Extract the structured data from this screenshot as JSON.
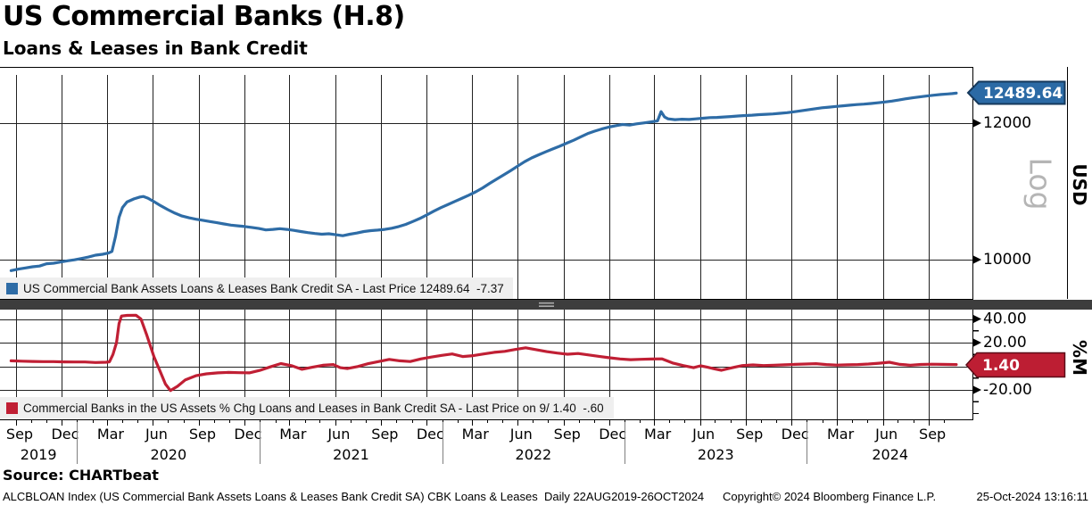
{
  "header": {
    "title": "US Commercial Banks (H.8)",
    "subtitle": "Loans & Leases in Bank Credit"
  },
  "colors": {
    "blue": "#2e6ca6",
    "blue_tag_fill": "#2b6aa5",
    "blue_tag_border": "#16395c",
    "red": "#c01f34",
    "red_tag_fill": "#bd1e33",
    "red_tag_border": "#5c0c18",
    "grid": "#222222",
    "legend_bg": "#efefef",
    "separator": "#3d3d3d",
    "log_watermark": "#b5b5b5"
  },
  "top_panel": {
    "legend": "US Commercial Bank Assets Loans & Leases Bank Credit SA - Last Price 12489.64  -7.37",
    "last_price_label": "12489.64",
    "scale_label": "Log",
    "axis_label_unit": "USD",
    "yticks": [
      {
        "label": "12000",
        "value": 12000
      },
      {
        "label": "10000",
        "value": 10000
      }
    ]
  },
  "bottom_panel": {
    "legend": "Commercial Banks in the US Assets % Chg Loans and Leases in Bank Credit SA - Last Price on 9/ 1.40  -.60",
    "last_price_label": "1.40",
    "axis_label_unit": "%M",
    "yticks": [
      {
        "label": "40.00",
        "value": 40
      },
      {
        "label": "20.00",
        "value": 20
      },
      {
        "label": "-20.00",
        "value": -20
      }
    ]
  },
  "x_axis": {
    "month_labels": [
      "Sep",
      "Dec",
      "Mar",
      "Jun",
      "Sep",
      "Dec",
      "Mar",
      "Jun",
      "Sep",
      "Dec",
      "Mar",
      "Jun",
      "Sep",
      "Dec",
      "Mar",
      "Jun",
      "Sep",
      "Dec",
      "Mar",
      "Jun",
      "Sep"
    ],
    "year_labels": [
      "2019",
      "2020",
      "2021",
      "2022",
      "2023",
      "2024"
    ],
    "range_start": "2019-08-22",
    "range_end": "2024-10-26"
  },
  "footer": {
    "source": "Source: CHARTbeat",
    "description": "ALCBLOAN Index (US Commercial Bank Assets Loans & Leases Bank Credit SA) CBK Loans & Leases  Daily 22AUG2019-26OCT2024",
    "copyright": "Copyright© 2024 Bloomberg Finance L.P.",
    "timestamp": "25-Oct-2024 13:16:11"
  },
  "chart_data": [
    {
      "type": "line",
      "panel": "top",
      "name": "US Commercial Bank Assets Loans & Leases Bank Credit SA",
      "unit": "USD",
      "scale": "log",
      "last_price": 12489.64,
      "change": -7.37,
      "ylim": [
        9700,
        12950
      ],
      "gridlines": [
        12000,
        10000
      ],
      "x_range": [
        "2019-08-22",
        "2024-10-26"
      ],
      "points": [
        [
          "2019-08-22",
          9855
        ],
        [
          "2019-09-06",
          9875
        ],
        [
          "2019-09-20",
          9890
        ],
        [
          "2019-10-04",
          9905
        ],
        [
          "2019-10-18",
          9915
        ],
        [
          "2019-11-01",
          9945
        ],
        [
          "2019-11-15",
          9952
        ],
        [
          "2019-11-29",
          9968
        ],
        [
          "2019-12-13",
          9985
        ],
        [
          "2019-12-27",
          9998
        ],
        [
          "2020-01-10",
          10015
        ],
        [
          "2020-01-24",
          10035
        ],
        [
          "2020-02-07",
          10060
        ],
        [
          "2020-02-21",
          10072
        ],
        [
          "2020-03-04",
          10088
        ],
        [
          "2020-03-11",
          10110
        ],
        [
          "2020-03-18",
          10310
        ],
        [
          "2020-03-25",
          10580
        ],
        [
          "2020-04-01",
          10720
        ],
        [
          "2020-04-10",
          10800
        ],
        [
          "2020-04-24",
          10845
        ],
        [
          "2020-05-06",
          10872
        ],
        [
          "2020-05-13",
          10880
        ],
        [
          "2020-05-22",
          10855
        ],
        [
          "2020-06-03",
          10805
        ],
        [
          "2020-06-17",
          10745
        ],
        [
          "2020-07-01",
          10690
        ],
        [
          "2020-07-15",
          10640
        ],
        [
          "2020-07-29",
          10600
        ],
        [
          "2020-08-12",
          10575
        ],
        [
          "2020-08-26",
          10555
        ],
        [
          "2020-09-09",
          10540
        ],
        [
          "2020-09-23",
          10522
        ],
        [
          "2020-10-07",
          10505
        ],
        [
          "2020-10-21",
          10488
        ],
        [
          "2020-11-04",
          10472
        ],
        [
          "2020-11-18",
          10462
        ],
        [
          "2020-12-02",
          10452
        ],
        [
          "2020-12-16",
          10440
        ],
        [
          "2020-12-30",
          10425
        ],
        [
          "2021-01-13",
          10405
        ],
        [
          "2021-01-27",
          10412
        ],
        [
          "2021-02-10",
          10422
        ],
        [
          "2021-02-24",
          10412
        ],
        [
          "2021-03-10",
          10398
        ],
        [
          "2021-03-24",
          10382
        ],
        [
          "2021-04-07",
          10368
        ],
        [
          "2021-04-21",
          10355
        ],
        [
          "2021-05-05",
          10345
        ],
        [
          "2021-05-19",
          10352
        ],
        [
          "2021-06-02",
          10338
        ],
        [
          "2021-06-16",
          10325
        ],
        [
          "2021-06-30",
          10345
        ],
        [
          "2021-07-14",
          10362
        ],
        [
          "2021-07-28",
          10382
        ],
        [
          "2021-08-11",
          10395
        ],
        [
          "2021-08-25",
          10402
        ],
        [
          "2021-09-08",
          10412
        ],
        [
          "2021-09-22",
          10428
        ],
        [
          "2021-10-06",
          10452
        ],
        [
          "2021-10-20",
          10482
        ],
        [
          "2021-11-03",
          10522
        ],
        [
          "2021-11-17",
          10565
        ],
        [
          "2021-12-01",
          10615
        ],
        [
          "2021-12-15",
          10668
        ],
        [
          "2021-12-29",
          10718
        ],
        [
          "2022-01-12",
          10762
        ],
        [
          "2022-01-26",
          10808
        ],
        [
          "2022-02-09",
          10852
        ],
        [
          "2022-02-23",
          10898
        ],
        [
          "2022-03-09",
          10948
        ],
        [
          "2022-03-23",
          11005
        ],
        [
          "2022-04-06",
          11072
        ],
        [
          "2022-04-20",
          11135
        ],
        [
          "2022-05-04",
          11198
        ],
        [
          "2022-05-18",
          11262
        ],
        [
          "2022-06-01",
          11330
        ],
        [
          "2022-06-15",
          11398
        ],
        [
          "2022-06-29",
          11455
        ],
        [
          "2022-07-13",
          11502
        ],
        [
          "2022-07-27",
          11548
        ],
        [
          "2022-08-10",
          11592
        ],
        [
          "2022-08-24",
          11635
        ],
        [
          "2022-09-07",
          11682
        ],
        [
          "2022-09-21",
          11728
        ],
        [
          "2022-10-05",
          11782
        ],
        [
          "2022-10-19",
          11832
        ],
        [
          "2022-11-02",
          11872
        ],
        [
          "2022-11-16",
          11905
        ],
        [
          "2022-11-30",
          11935
        ],
        [
          "2022-12-14",
          11958
        ],
        [
          "2022-12-28",
          11978
        ],
        [
          "2023-01-11",
          11968
        ],
        [
          "2023-01-25",
          11988
        ],
        [
          "2023-02-08",
          12002
        ],
        [
          "2023-02-22",
          12018
        ],
        [
          "2023-03-08",
          12035
        ],
        [
          "2023-03-15",
          12185
        ],
        [
          "2023-03-22",
          12098
        ],
        [
          "2023-03-29",
          12068
        ],
        [
          "2023-04-12",
          12055
        ],
        [
          "2023-04-26",
          12062
        ],
        [
          "2023-05-10",
          12058
        ],
        [
          "2023-05-24",
          12068
        ],
        [
          "2023-06-07",
          12078
        ],
        [
          "2023-06-21",
          12088
        ],
        [
          "2023-07-05",
          12092
        ],
        [
          "2023-07-19",
          12098
        ],
        [
          "2023-08-02",
          12106
        ],
        [
          "2023-08-16",
          12114
        ],
        [
          "2023-08-30",
          12122
        ],
        [
          "2023-09-13",
          12128
        ],
        [
          "2023-09-27",
          12136
        ],
        [
          "2023-10-11",
          12142
        ],
        [
          "2023-10-25",
          12148
        ],
        [
          "2023-11-08",
          12158
        ],
        [
          "2023-11-22",
          12168
        ],
        [
          "2023-12-06",
          12182
        ],
        [
          "2023-12-20",
          12198
        ],
        [
          "2024-01-03",
          12215
        ],
        [
          "2024-01-17",
          12232
        ],
        [
          "2024-01-31",
          12248
        ],
        [
          "2024-02-14",
          12258
        ],
        [
          "2024-02-28",
          12270
        ],
        [
          "2024-03-13",
          12280
        ],
        [
          "2024-03-27",
          12290
        ],
        [
          "2024-04-10",
          12300
        ],
        [
          "2024-04-24",
          12308
        ],
        [
          "2024-05-08",
          12318
        ],
        [
          "2024-05-22",
          12330
        ],
        [
          "2024-06-05",
          12344
        ],
        [
          "2024-06-19",
          12358
        ],
        [
          "2024-07-03",
          12376
        ],
        [
          "2024-07-17",
          12396
        ],
        [
          "2024-07-31",
          12412
        ],
        [
          "2024-08-14",
          12428
        ],
        [
          "2024-08-28",
          12442
        ],
        [
          "2024-09-11",
          12455
        ],
        [
          "2024-09-25",
          12468
        ],
        [
          "2024-10-09",
          12476
        ],
        [
          "2024-10-18",
          12483
        ],
        [
          "2024-10-26",
          12489.64
        ]
      ]
    },
    {
      "type": "line",
      "panel": "bottom",
      "name": "Commercial Banks in the US Assets % Chg Loans and Leases in Bank Credit SA",
      "unit": "%M",
      "scale": "linear",
      "last_price": 1.4,
      "change": -0.6,
      "ylim": [
        -28,
        48
      ],
      "gridlines": [
        40,
        20,
        0,
        -20
      ],
      "x_range": [
        "2019-08-22",
        "2024-10-26"
      ],
      "points": [
        [
          "2019-08-22",
          4.6
        ],
        [
          "2019-09-13",
          4.3
        ],
        [
          "2019-10-04",
          4.1
        ],
        [
          "2019-10-25",
          3.9
        ],
        [
          "2019-11-15",
          3.9
        ],
        [
          "2019-12-06",
          3.7
        ],
        [
          "2019-12-27",
          3.6
        ],
        [
          "2020-01-17",
          3.6
        ],
        [
          "2020-02-07",
          3.2
        ],
        [
          "2020-02-28",
          3.4
        ],
        [
          "2020-03-06",
          3.8
        ],
        [
          "2020-03-13",
          10
        ],
        [
          "2020-03-20",
          20
        ],
        [
          "2020-03-25",
          36
        ],
        [
          "2020-03-30",
          42.5
        ],
        [
          "2020-04-10",
          43.0
        ],
        [
          "2020-04-28",
          43.2
        ],
        [
          "2020-05-08",
          40
        ],
        [
          "2020-05-20",
          26
        ],
        [
          "2020-06-03",
          8
        ],
        [
          "2020-06-17",
          -6
        ],
        [
          "2020-06-26",
          -15
        ],
        [
          "2020-07-06",
          -20.5
        ],
        [
          "2020-07-20",
          -17
        ],
        [
          "2020-08-05",
          -11.5
        ],
        [
          "2020-08-26",
          -8
        ],
        [
          "2020-09-16",
          -6.4
        ],
        [
          "2020-10-09",
          -5.6
        ],
        [
          "2020-10-30",
          -5.2
        ],
        [
          "2020-11-20",
          -5.4
        ],
        [
          "2020-12-11",
          -5.6
        ],
        [
          "2021-01-01",
          -3.5
        ],
        [
          "2021-01-22",
          -0.5
        ],
        [
          "2021-02-12",
          2.3
        ],
        [
          "2021-03-05",
          0.5
        ],
        [
          "2021-03-26",
          -2.6
        ],
        [
          "2021-04-16",
          -0.8
        ],
        [
          "2021-05-07",
          0.8
        ],
        [
          "2021-05-28",
          1.4
        ],
        [
          "2021-06-11",
          -1.2
        ],
        [
          "2021-06-25",
          -2.0
        ],
        [
          "2021-07-16",
          -0.2
        ],
        [
          "2021-08-06",
          2.2
        ],
        [
          "2021-08-27",
          4.0
        ],
        [
          "2021-09-17",
          5.8
        ],
        [
          "2021-10-08",
          4.6
        ],
        [
          "2021-10-29",
          4.0
        ],
        [
          "2021-11-19",
          6.2
        ],
        [
          "2021-12-10",
          7.8
        ],
        [
          "2021-12-31",
          9.2
        ],
        [
          "2022-01-21",
          10.4
        ],
        [
          "2022-02-11",
          8.2
        ],
        [
          "2022-03-04",
          9.0
        ],
        [
          "2022-03-25",
          10.4
        ],
        [
          "2022-04-15",
          11.8
        ],
        [
          "2022-05-06",
          12.6
        ],
        [
          "2022-05-27",
          14.2
        ],
        [
          "2022-06-17",
          15.6
        ],
        [
          "2022-07-08",
          14.0
        ],
        [
          "2022-07-29",
          12.4
        ],
        [
          "2022-08-19",
          11.2
        ],
        [
          "2022-09-09",
          10.2
        ],
        [
          "2022-09-30",
          10.8
        ],
        [
          "2022-10-21",
          9.6
        ],
        [
          "2022-11-11",
          8.4
        ],
        [
          "2022-12-02",
          7.2
        ],
        [
          "2022-12-23",
          6.2
        ],
        [
          "2023-01-13",
          5.6
        ],
        [
          "2023-02-03",
          5.9
        ],
        [
          "2023-02-24",
          6.1
        ],
        [
          "2023-03-17",
          6.3
        ],
        [
          "2023-04-07",
          2.8
        ],
        [
          "2023-04-28",
          0.6
        ],
        [
          "2023-05-19",
          -1.2
        ],
        [
          "2023-06-02",
          0.4
        ],
        [
          "2023-06-16",
          -0.8
        ],
        [
          "2023-06-30",
          -2.2
        ],
        [
          "2023-07-14",
          -3.4
        ],
        [
          "2023-07-28",
          -2.0
        ],
        [
          "2023-08-11",
          -0.6
        ],
        [
          "2023-08-25",
          0.6
        ],
        [
          "2023-09-15",
          1.1
        ],
        [
          "2023-10-06",
          0.6
        ],
        [
          "2023-10-27",
          0.9
        ],
        [
          "2023-11-17",
          1.2
        ],
        [
          "2023-12-08",
          1.6
        ],
        [
          "2023-12-29",
          1.9
        ],
        [
          "2024-01-19",
          2.2
        ],
        [
          "2024-02-09",
          1.4
        ],
        [
          "2024-03-01",
          1.0
        ],
        [
          "2024-03-22",
          1.2
        ],
        [
          "2024-04-12",
          1.4
        ],
        [
          "2024-05-03",
          1.9
        ],
        [
          "2024-05-24",
          2.6
        ],
        [
          "2024-06-14",
          3.4
        ],
        [
          "2024-07-05",
          1.6
        ],
        [
          "2024-07-26",
          0.9
        ],
        [
          "2024-08-16",
          1.5
        ],
        [
          "2024-09-06",
          1.7
        ],
        [
          "2024-09-27",
          1.6
        ],
        [
          "2024-10-11",
          1.5
        ],
        [
          "2024-10-26",
          1.4
        ]
      ]
    }
  ]
}
